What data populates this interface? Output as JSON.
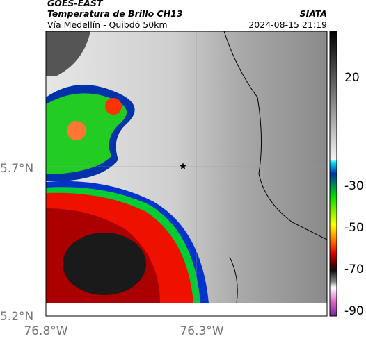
{
  "header": {
    "source": "GOES-EAST",
    "product": "Temperatura de Brillo CH13",
    "location": "Vía Medellín - Quibdó 50km",
    "agency": "SIATA",
    "datetime": "2024-08-15 21:19"
  },
  "map": {
    "lat_labels": [
      "5.7°N",
      "5.2°N"
    ],
    "lon_labels": [
      "76.8°W",
      "76.3°W"
    ]
  },
  "colorbar": {
    "ticks": [
      20,
      -30,
      -50,
      -70,
      -90
    ]
  }
}
